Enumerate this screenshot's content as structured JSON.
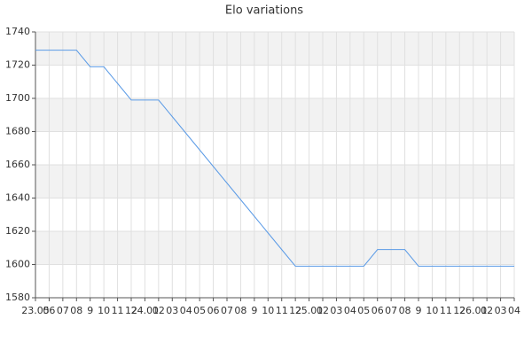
{
  "chart_data": {
    "type": "line",
    "title": "Elo variations",
    "categories": [
      "23.05",
      "06",
      "07",
      "08",
      "9",
      "10",
      "11",
      "12",
      "24.01",
      "02",
      "03",
      "04",
      "05",
      "06",
      "07",
      "08",
      "9",
      "10",
      "11",
      "12",
      "25.01",
      "02",
      "03",
      "04",
      "05",
      "06",
      "07",
      "08",
      "9",
      "10",
      "11",
      "12",
      "26.01",
      "02",
      "03",
      "04"
    ],
    "series": [
      {
        "name": "Elo",
        "color": "#5b9be6",
        "values": [
          1729,
          1729,
          1729,
          1729,
          1719,
          1719,
          1709,
          1699,
          1699,
          1699,
          1689,
          1679,
          1669,
          1659,
          1649,
          1639,
          1629,
          1619,
          1609,
          1599,
          1599,
          1599,
          1599,
          1599,
          1599,
          1609,
          1609,
          1609,
          1599,
          1599,
          1599,
          1599,
          1599,
          1599,
          1599,
          1599
        ]
      }
    ],
    "ylim": [
      1580,
      1740
    ],
    "yticks": [
      1580,
      1600,
      1620,
      1640,
      1660,
      1680,
      1700,
      1720,
      1740
    ],
    "grid": true
  }
}
